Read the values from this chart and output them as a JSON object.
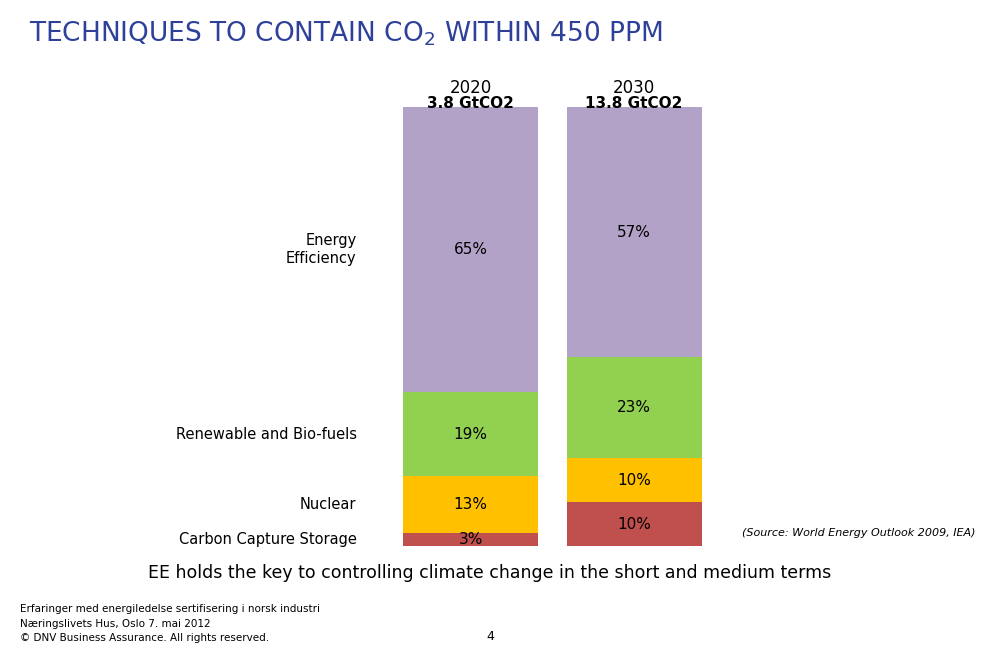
{
  "title_color": "#2E4099",
  "title_fontsize": 19,
  "bars": {
    "2020": {
      "label": "2020",
      "subtitle": "3.8 GtCO2",
      "segments": [
        {
          "label": "Carbon Capture Storage",
          "value": 3,
          "color": "#C0504D"
        },
        {
          "label": "Nuclear",
          "value": 13,
          "color": "#FFC000"
        },
        {
          "label": "Renewable and Bio-fuels",
          "value": 19,
          "color": "#92D050"
        },
        {
          "label": "Energy Efficiency",
          "value": 65,
          "color": "#B3A2C7"
        }
      ]
    },
    "2030": {
      "label": "2030",
      "subtitle": "13.8 GtCO2",
      "segments": [
        {
          "label": "Carbon Capture Storage",
          "value": 10,
          "color": "#C0504D"
        },
        {
          "label": "Nuclear",
          "value": 10,
          "color": "#FFC000"
        },
        {
          "label": "Renewable and Bio-fuels",
          "value": 23,
          "color": "#92D050"
        },
        {
          "label": "Energy Efficiency",
          "value": 57,
          "color": "#B3A2C7"
        }
      ]
    }
  },
  "row_labels": [
    "Carbon Capture Storage",
    "Nuclear",
    "Renewable and Bio-fuels",
    "Energy\nEfficiency"
  ],
  "source_text": "(Source: World Energy Outlook 2009, IEA)",
  "footer_box_text": "EE holds the key to controlling climate change in the short and medium terms",
  "footer_box_color": "#BFBFBF",
  "footer_text_color": "#000000",
  "bottom_text_lines": [
    "Erfaringer med energiledelse sertifisering i norsk industri",
    "Næringslivets Hus, Oslo 7. mai 2012",
    "© DNV Business Assurance. All rights reserved."
  ],
  "page_number": "4",
  "background_color": "#FFFFFF",
  "ylim": [
    0,
    100
  ]
}
